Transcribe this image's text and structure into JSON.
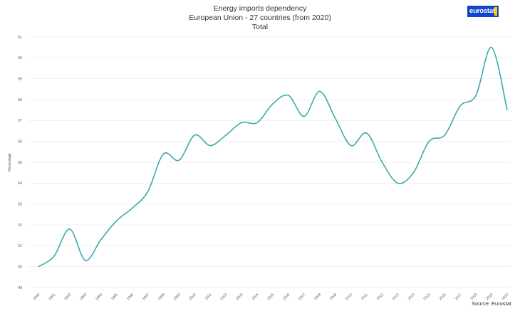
{
  "header": {
    "title": "Energy imports dependency",
    "subtitle": "European Union - 27 countries (from 2020)",
    "subtitle2": "Total",
    "logo": "eurostat"
  },
  "footer": {
    "source": "Source: Eurostat"
  },
  "colors": {
    "line": "#3aa9ad",
    "logo_bg": "#0e47cb",
    "logo_accent": "#ffcc00"
  },
  "chart_data": {
    "type": "line",
    "title": "Energy imports dependency",
    "subtitle": "European Union - 27 countries (from 2020)",
    "subtitle2": "Total",
    "xlabel": "",
    "ylabel": "Percentage",
    "x": [
      1990,
      1991,
      1992,
      1993,
      1994,
      1995,
      1996,
      1997,
      1998,
      1999,
      2000,
      2001,
      2002,
      2003,
      2004,
      2005,
      2006,
      2007,
      2008,
      2009,
      2010,
      2011,
      2012,
      2013,
      2014,
      2015,
      2016,
      2017,
      2018,
      2019,
      2020
    ],
    "series": [
      {
        "values": [
          50.0,
          50.5,
          51.8,
          50.3,
          51.3,
          52.2,
          52.8,
          53.6,
          55.4,
          55.1,
          56.3,
          55.8,
          56.3,
          56.9,
          56.9,
          57.8,
          58.2,
          57.2,
          58.4,
          57.1,
          55.8,
          56.4,
          55.0,
          54.0,
          54.5,
          56.0,
          56.3,
          57.7,
          58.2,
          60.5,
          57.5
        ]
      }
    ],
    "ylim": [
      49,
      61
    ],
    "yticks": [
      49,
      50,
      51,
      52,
      53,
      54,
      55,
      56,
      57,
      58,
      59,
      60,
      61
    ],
    "grid": true,
    "legend": "none"
  }
}
